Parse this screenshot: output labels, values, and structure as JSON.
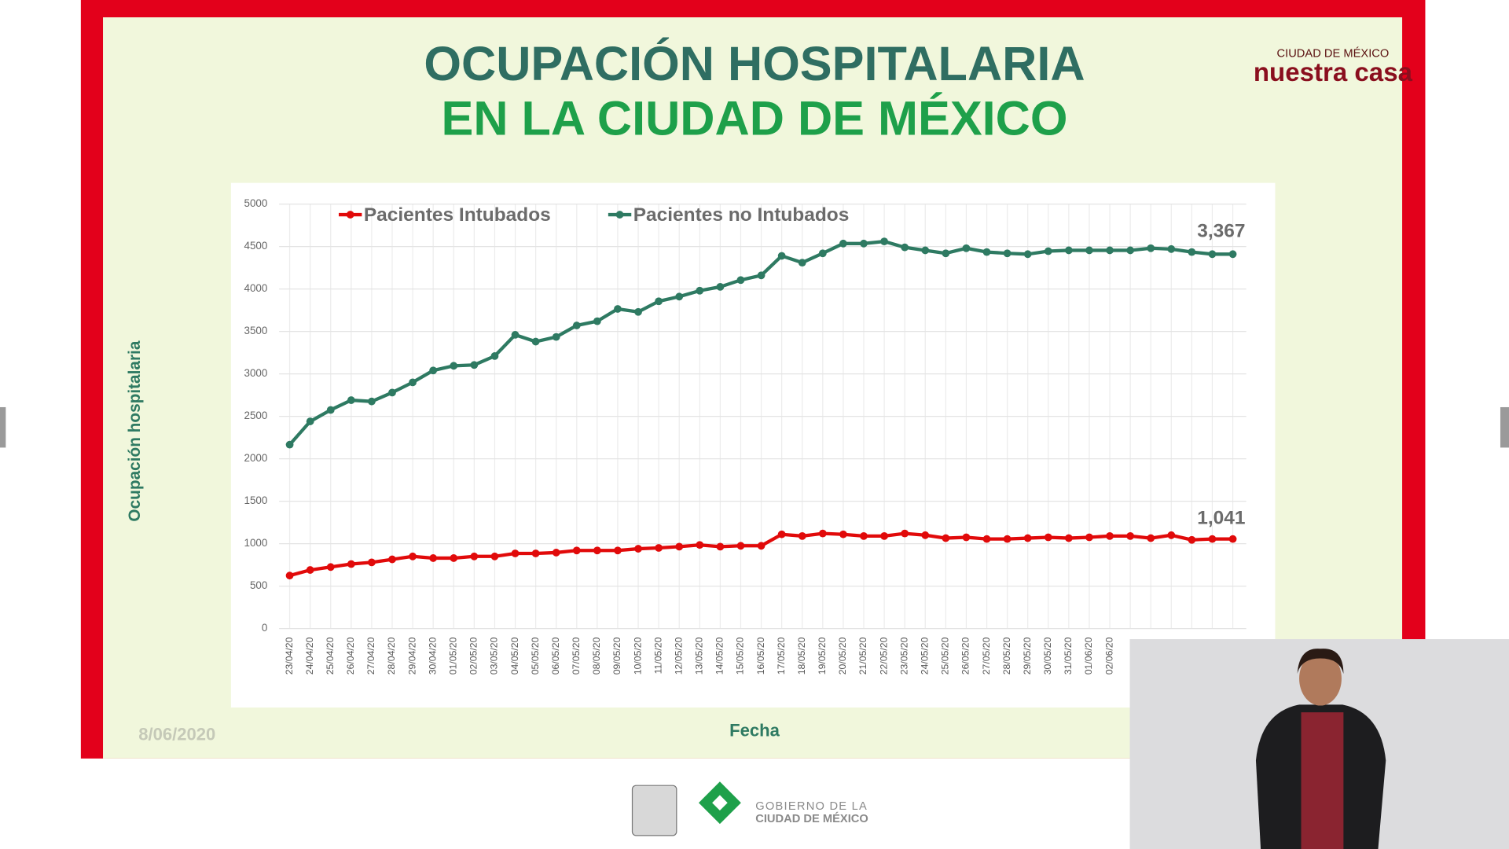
{
  "header": {
    "brand_top": "CIUDAD DE MÉXICO",
    "brand": "nuestra casa"
  },
  "chart_data": {
    "type": "line",
    "title": "OCUPACIÓN HOSPITALARIA",
    "subtitle": "EN LA CIUDAD DE MÉXICO",
    "ylabel": "Ocupación hospitalaria",
    "xlabel": "Fecha",
    "categories": [
      "23/04/20",
      "24/04/20",
      "25/04/20",
      "26/04/20",
      "27/04/20",
      "28/04/20",
      "29/04/20",
      "30/04/20",
      "01/05/20",
      "02/05/20",
      "03/05/20",
      "04/05/20",
      "05/05/20",
      "06/05/20",
      "07/05/20",
      "08/05/20",
      "09/05/20",
      "10/05/20",
      "11/05/20",
      "12/05/20",
      "13/05/20",
      "14/05/20",
      "15/05/20",
      "16/05/20",
      "17/05/20",
      "18/05/20",
      "19/05/20",
      "20/05/20",
      "21/05/20",
      "22/05/20",
      "23/05/20",
      "24/05/20",
      "25/05/20",
      "26/05/20",
      "27/05/20",
      "28/05/20",
      "29/05/20",
      "30/05/20",
      "31/05/20",
      "01/06/20",
      "02/06/20",
      null,
      null,
      null,
      null,
      null,
      null
    ],
    "series": [
      {
        "name": "Pacientes Intubados",
        "color": "#e10a0a",
        "values": [
          624,
          690,
          725,
          760,
          780,
          815,
          850,
          830,
          830,
          850,
          850,
          885,
          885,
          895,
          920,
          920,
          920,
          940,
          950,
          965,
          985,
          965,
          975,
          975,
          1110,
          1090,
          1120,
          1110,
          1090,
          1090,
          1120,
          1100,
          1065,
          1075,
          1055,
          1055,
          1065,
          1075,
          1065,
          1075,
          1090,
          1090,
          1065,
          1100,
          1045,
          1055,
          1055
        ]
      },
      {
        "name": "Pacientes no Intubados",
        "color": "#2e7a62",
        "values": [
          2166,
          2440,
          2575,
          2690,
          2675,
          2780,
          2900,
          3040,
          3095,
          3105,
          3210,
          3460,
          3380,
          3435,
          3570,
          3620,
          3765,
          3730,
          3855,
          3910,
          3980,
          4025,
          4105,
          4160,
          4390,
          4310,
          4420,
          4535,
          4535,
          4560,
          4490,
          4455,
          4420,
          4480,
          4435,
          4420,
          4410,
          4445,
          4455,
          4455,
          4455,
          4455,
          4480,
          4470,
          4435,
          4410,
          4410
        ]
      }
    ],
    "annotations": [
      "3,367",
      "1,041"
    ],
    "ylim": [
      0,
      5000
    ],
    "yticks": [
      0,
      500,
      1000,
      1500,
      2000,
      2500,
      3000,
      3500,
      4000,
      4500,
      5000
    ],
    "grid": true
  },
  "footer": {
    "date": "8/06/2020",
    "gov_line1": "GOBIERNO DE LA",
    "gov_line2": "CIUDAD DE MÉXICO"
  }
}
